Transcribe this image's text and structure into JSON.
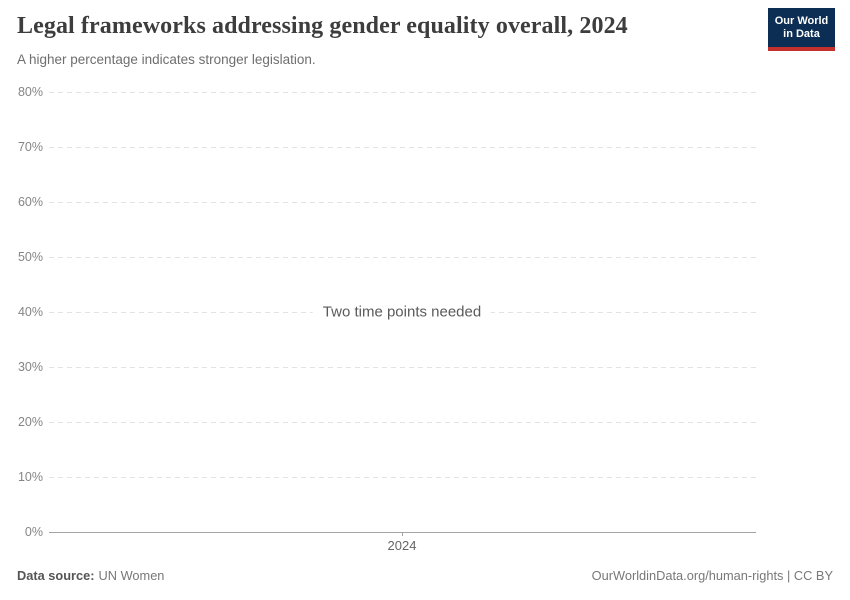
{
  "header": {
    "title": "Legal frameworks addressing gender equality overall, 2024",
    "subtitle": "A higher percentage indicates stronger legislation."
  },
  "logo": {
    "line1": "Our World",
    "line2": "in Data"
  },
  "chart": {
    "message": "Two time points needed",
    "y_ticks": [
      "80%",
      "70%",
      "60%",
      "50%",
      "40%",
      "30%",
      "20%",
      "10%",
      "0%"
    ],
    "x_ticks": [
      "2024"
    ]
  },
  "chart_data": {
    "type": "line",
    "title": "Legal frameworks addressing gender equality overall, 2024",
    "subtitle": "A higher percentage indicates stronger legislation.",
    "x": [
      2024
    ],
    "series": [],
    "annotations": [
      "Two time points needed"
    ],
    "xlabel": "",
    "ylabel": "",
    "ylim": [
      0,
      80
    ],
    "y_tick_step": 10,
    "y_tick_format": "percent",
    "grid": true,
    "legend": "none"
  },
  "footer": {
    "source_label": "Data source:",
    "source_value": "UN Women",
    "rights": "OurWorldinData.org/human-rights | CC BY"
  },
  "colors": {
    "logo_bg": "#0d2e54",
    "logo_accent": "#c4302b",
    "gridline": "#e3e3e3",
    "axis": "#a3a3a3",
    "title_text": "#3d3d3d",
    "subtitle_text": "#6e6e6e",
    "tick_text": "#858585",
    "message_text": "#5a5a5a",
    "footer_text": "#787878"
  }
}
